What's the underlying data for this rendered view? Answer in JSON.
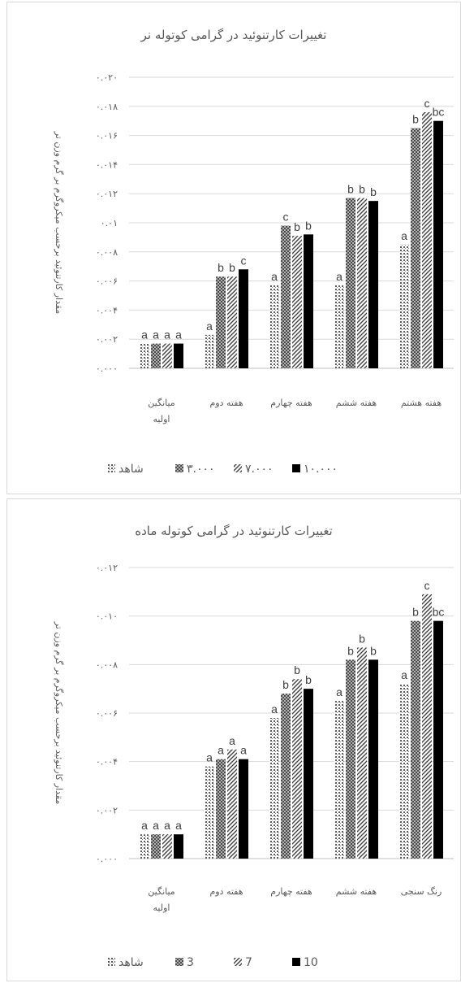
{
  "chart_data": [
    {
      "type": "bar",
      "title": "تغییرات کارتنوئید در گرامی کوتوله نر",
      "ylabel": "مقدار کارتنوئید برحسب میکروگرم بر گرم وزن تر",
      "yticks": [
        "۰.۰۰۰",
        "۰.۰۰۲",
        "۰.۰۰۴",
        "۰.۰۰۶",
        "۰.۰۰۸",
        "۰.۰۱",
        "۰.۰۱۲",
        "۰.۰۱۴",
        "۰.۰۱۶",
        "۰.۰۱۸",
        "۰.۰۲۰"
      ],
      "ylim": [
        0,
        0.02
      ],
      "grid": true,
      "legend_position": "bottom",
      "categories": [
        [
          "میانگین",
          "اولیه"
        ],
        [
          "هفته دوم"
        ],
        [
          "هفته چهارم"
        ],
        [
          "هفته ششم"
        ],
        [
          "هفته هشتم"
        ]
      ],
      "series": [
        {
          "name": "شاهد",
          "color": "#595959",
          "pattern": "dots",
          "values": [
            0.0017,
            0.0023,
            0.0057,
            0.0057,
            0.0085
          ]
        },
        {
          "name": "۳.۰۰۰",
          "color": "#404040",
          "pattern": "dense",
          "values": [
            0.0017,
            0.0063,
            0.0098,
            0.0117,
            0.0165
          ]
        },
        {
          "name": "۷.۰۰۰",
          "color": "#404040",
          "pattern": "diag",
          "values": [
            0.0017,
            0.0063,
            0.0091,
            0.0117,
            0.0176
          ]
        },
        {
          "name": "۱۰.۰۰۰",
          "color": "#000000",
          "pattern": "solid",
          "values": [
            0.0017,
            0.0068,
            0.0092,
            0.0115,
            0.017
          ]
        }
      ],
      "labels": [
        [
          "a",
          "a",
          "a",
          "a"
        ],
        [
          "a",
          "b",
          "b",
          "c"
        ],
        [
          "a",
          "c",
          "b",
          "b"
        ],
        [
          "a",
          "b",
          "b",
          "b"
        ],
        [
          "a",
          "b",
          "c",
          "bc"
        ]
      ]
    },
    {
      "type": "bar",
      "title": "تغییرات کارتنوئید در گرامی کوتوله ماده",
      "ylabel": "مقدار کارتنوئید برحسب میکروگرم بر گرم وزن تر",
      "yticks": [
        "۰.۰۰۰",
        "۰.۰۰۲",
        "۰.۰۰۴",
        "۰.۰۰۶",
        "۰.۰۰۸",
        "۰.۰۱۰",
        "۰.۰۱۲"
      ],
      "ylim": [
        0,
        0.012
      ],
      "grid": true,
      "legend_position": "bottom",
      "categories": [
        [
          "میانگین",
          "اولیه"
        ],
        [
          "هفته دوم"
        ],
        [
          "هفته چهارم"
        ],
        [
          "هفته ششم"
        ],
        [
          "رنگ سنجی"
        ]
      ],
      "series": [
        {
          "name": "شاهد",
          "color": "#595959",
          "pattern": "dots",
          "values": [
            0.001,
            0.0038,
            0.0058,
            0.0065,
            0.0072
          ]
        },
        {
          "name": "3",
          "color": "#404040",
          "pattern": "dense",
          "values": [
            0.001,
            0.0041,
            0.0068,
            0.0082,
            0.0098
          ]
        },
        {
          "name": "7",
          "color": "#404040",
          "pattern": "diag",
          "values": [
            0.001,
            0.0045,
            0.0074,
            0.0087,
            0.0109
          ]
        },
        {
          "name": "10",
          "color": "#000000",
          "pattern": "solid",
          "values": [
            0.001,
            0.0041,
            0.007,
            0.0082,
            0.0098
          ]
        }
      ],
      "labels": [
        [
          "a",
          "a",
          "a",
          "a"
        ],
        [
          "a",
          "a",
          "a",
          "a"
        ],
        [
          "a",
          "b",
          "b",
          "b"
        ],
        [
          "a",
          "b",
          "b",
          "b"
        ],
        [
          "a",
          "b",
          "c",
          "bc"
        ]
      ]
    }
  ]
}
